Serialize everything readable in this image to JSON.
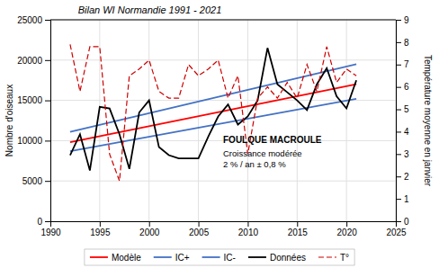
{
  "chart_data": {
    "type": "line",
    "title": "Bilan WI Normandie 1991 - 2021",
    "ylabel": "Nombre d'oiseaux",
    "y2label": "Température moyenne en janvier",
    "x": [
      1992,
      1993,
      1994,
      1995,
      1996,
      1997,
      1998,
      1999,
      2000,
      2001,
      2002,
      2003,
      2004,
      2005,
      2006,
      2007,
      2008,
      2009,
      2010,
      2011,
      2012,
      2013,
      2014,
      2015,
      2016,
      2017,
      2018,
      2019,
      2020,
      2021
    ],
    "xlim": [
      1990,
      2025
    ],
    "xticks": [
      1990,
      1995,
      2000,
      2005,
      2010,
      2015,
      2020,
      2025
    ],
    "ylim": [
      0,
      25000
    ],
    "yticks": [
      0,
      5000,
      10000,
      15000,
      20000,
      25000
    ],
    "y2lim": [
      0,
      9
    ],
    "y2ticks": [
      0,
      1,
      2,
      3,
      4,
      5,
      6,
      7,
      8,
      9
    ],
    "grid": true,
    "legend": "bottom",
    "series": [
      {
        "name": "Modèle",
        "color": "#ff0000",
        "x": [
          1992,
          2021
        ],
        "values": [
          9800,
          17000
        ]
      },
      {
        "name": "IC+",
        "color": "#4472c4",
        "x": [
          1992,
          2021
        ],
        "values": [
          11100,
          19500
        ]
      },
      {
        "name": "IC-",
        "color": "#4472c4",
        "x": [
          1992,
          2021
        ],
        "values": [
          8700,
          15200
        ]
      },
      {
        "name": "Données",
        "color": "#000000",
        "values": [
          8200,
          10800,
          6300,
          14200,
          14000,
          10800,
          6500,
          13500,
          15000,
          9200,
          8200,
          7800,
          7800,
          7800,
          10500,
          13000,
          14500,
          12000,
          13000,
          15000,
          21500,
          17000,
          16000,
          15000,
          13800,
          17000,
          19000,
          15500,
          14000,
          17500
        ]
      },
      {
        "name": "T°",
        "color": "#cc0000",
        "axis": "y2",
        "line_style": "dashed",
        "values": [
          7.9,
          5.8,
          7.8,
          7.8,
          3.0,
          1.8,
          6.5,
          6.8,
          7.2,
          5.8,
          5.5,
          5.5,
          7.0,
          6.5,
          6.8,
          7.2,
          5.5,
          6.5,
          3.0,
          5.5,
          6.0,
          5.5,
          6.2,
          5.5,
          7.0,
          5.8,
          7.8,
          6.2,
          6.8,
          6.5
        ]
      }
    ],
    "annotations": [
      {
        "text": "FOULQUE MACROULE",
        "x": 2007.5,
        "y": 10500
      },
      {
        "text": "Croissance modérée",
        "x": 2007.5,
        "y": 8800
      },
      {
        "text": "2 % / an ± 0,8 %",
        "x": 2007.5,
        "y": 7500
      }
    ]
  }
}
